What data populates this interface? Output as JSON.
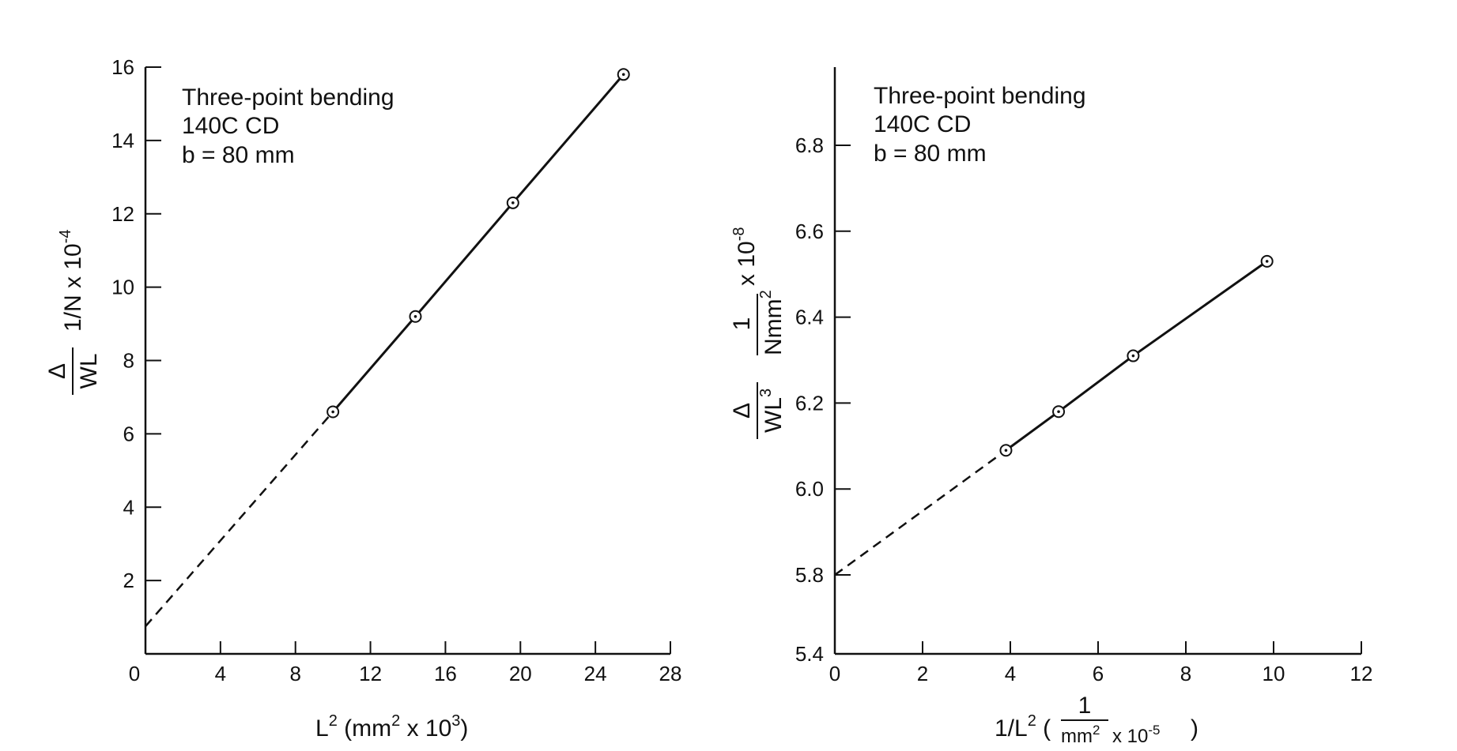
{
  "chart_data": [
    {
      "type": "line",
      "title": "",
      "annotation": [
        "Three-point bending",
        "140C CD",
        "b = 80 mm"
      ],
      "xlabel": {
        "base": "L",
        "sup": "2",
        "units_open": " (mm",
        "units_sup": "2",
        "units_mid": " x 10",
        "units_sup2": "3",
        "units_close": ")"
      },
      "ylabel": {
        "frac_num": "Δ",
        "frac_den": "WL",
        "units": "1/N x 10",
        "units_sup": "-4"
      },
      "xlim": [
        0,
        28
      ],
      "ylim": [
        0,
        16
      ],
      "xticks": [
        0,
        4,
        8,
        12,
        16,
        20,
        24,
        28
      ],
      "yticks": [
        2,
        4,
        6,
        8,
        10,
        12,
        14,
        16
      ],
      "grid": false,
      "series": [
        {
          "x": [
            10.0,
            14.4,
            19.6,
            25.5
          ],
          "y": [
            6.6,
            9.2,
            12.3,
            15.8
          ],
          "markers": "circled-dot",
          "line": "solid"
        }
      ],
      "extrapolation": {
        "x": [
          0,
          10.0
        ],
        "y": [
          0.75,
          6.6
        ],
        "line": "dashed"
      }
    },
    {
      "type": "line",
      "title": "",
      "annotation": [
        "Three-point bending",
        "140C CD",
        "b = 80 mm"
      ],
      "xlabel": {
        "text": "1/L",
        "sup": "2",
        "open": " (",
        "frac_num": "1",
        "frac_den": "mm",
        "frac_den_sup": "2",
        "frac_mult": " x 10",
        "frac_mult_sup": "-5",
        "close": ")"
      },
      "ylabel": {
        "frac_num": "Δ",
        "frac_den": "WL",
        "frac_den_sup": "3",
        "units_num": "1",
        "units_den": "Nmm",
        "units_den_sup": "2",
        "units_mult": "x 10",
        "units_mult_sup": "-8"
      },
      "xlim": [
        0,
        12
      ],
      "ylim": [
        5.4,
        7.0
      ],
      "xticks": [
        0,
        2,
        4,
        6,
        8,
        10,
        12
      ],
      "yticks": [
        5.4,
        5.8,
        6.0,
        6.2,
        6.4,
        6.6,
        6.8
      ],
      "ytick_labels": [
        "5.4",
        "5.8",
        "6.0",
        "6.2",
        "6.4",
        "6.6",
        "6.8"
      ],
      "grid": false,
      "series": [
        {
          "x": [
            3.9,
            5.1,
            6.8,
            9.85
          ],
          "y": [
            6.09,
            6.18,
            6.31,
            6.53
          ],
          "markers": "circled-dot",
          "line": "solid"
        }
      ],
      "extrapolation": {
        "x": [
          0,
          3.9
        ],
        "y": [
          5.8,
          6.09
        ],
        "line": "dashed"
      }
    }
  ]
}
